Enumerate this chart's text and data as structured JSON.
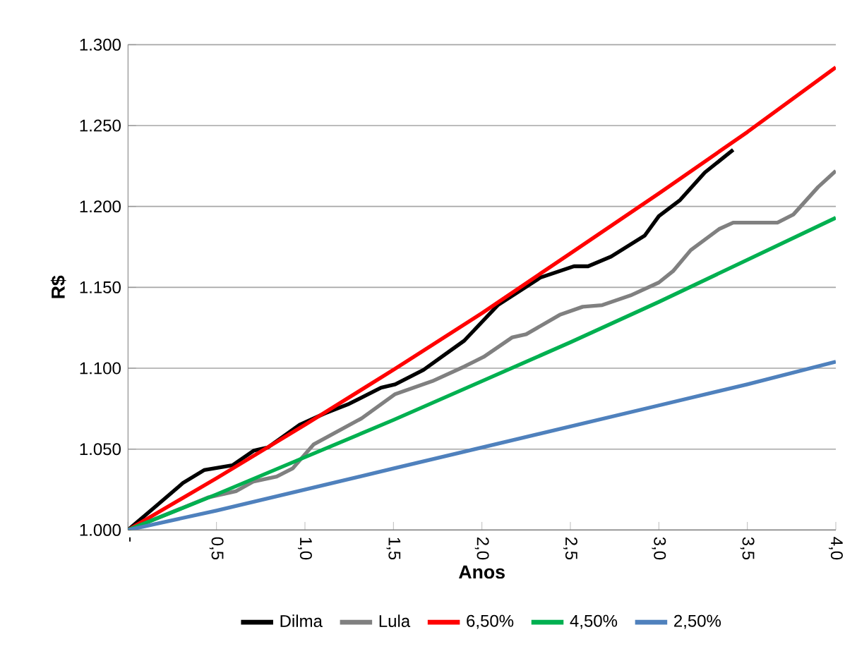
{
  "chart_data": {
    "type": "line",
    "xlabel": "Anos",
    "ylabel": "R$",
    "series": [
      {
        "name": "Dilma",
        "color": "#000000",
        "x": [
          0,
          0.15,
          0.31,
          0.43,
          0.59,
          0.71,
          0.79,
          0.97,
          1.11,
          1.25,
          1.43,
          1.51,
          1.67,
          1.9,
          2.09,
          2.33,
          2.52,
          2.6,
          2.73,
          2.92,
          3.0,
          3.12,
          3.26,
          3.42
        ],
        "values": [
          1000,
          1014,
          1029,
          1037,
          1040,
          1049,
          1051,
          1065,
          1072,
          1078,
          1088,
          1090,
          1099,
          1117,
          1139,
          1156,
          1163,
          1163,
          1169,
          1182,
          1194,
          1204,
          1221,
          1235
        ]
      },
      {
        "name": "Lula",
        "color": "#808080",
        "x": [
          0,
          0.45,
          0.61,
          0.71,
          0.84,
          0.93,
          1.05,
          1.32,
          1.51,
          1.72,
          1.9,
          2.01,
          2.17,
          2.25,
          2.44,
          2.57,
          2.68,
          2.84,
          3.0,
          3.08,
          3.18,
          3.34,
          3.42,
          3.67,
          3.76,
          3.9,
          4.0
        ],
        "values": [
          1000,
          1020,
          1024,
          1030,
          1033,
          1038,
          1053,
          1069,
          1084,
          1092,
          1101,
          1107,
          1119,
          1121,
          1133,
          1138,
          1139,
          1145,
          1153,
          1160,
          1173,
          1186,
          1190,
          1190,
          1195,
          1212,
          1222
        ]
      },
      {
        "name": "6,50%",
        "color": "#ff0000",
        "x": [
          0,
          0.5,
          1,
          1.5,
          2,
          2.5,
          3,
          3.5,
          4
        ],
        "values": [
          1000,
          1032,
          1065,
          1099,
          1134,
          1171,
          1208,
          1246,
          1286
        ]
      },
      {
        "name": "4,50%",
        "color": "#00b050",
        "x": [
          0,
          0.5,
          1,
          1.5,
          2,
          2.5,
          3,
          3.5,
          4
        ],
        "values": [
          1000,
          1022,
          1045,
          1068,
          1092,
          1116,
          1141,
          1167,
          1193
        ]
      },
      {
        "name": "2,50%",
        "color": "#4f81bd",
        "x": [
          0,
          0.5,
          1,
          1.5,
          2,
          2.5,
          3,
          3.5,
          4
        ],
        "values": [
          1000,
          1012,
          1025,
          1038,
          1051,
          1064,
          1077,
          1090,
          1104
        ]
      }
    ],
    "xlim": [
      0,
      4
    ],
    "xticks": [
      {
        "value": 0,
        "label": "-"
      },
      {
        "value": 0.5,
        "label": "0,5"
      },
      {
        "value": 1,
        "label": "1,0"
      },
      {
        "value": 1.5,
        "label": "1,5"
      },
      {
        "value": 2,
        "label": "2,0"
      },
      {
        "value": 2.5,
        "label": "2,5"
      },
      {
        "value": 3,
        "label": "3,0"
      },
      {
        "value": 3.5,
        "label": "3,5"
      },
      {
        "value": 4,
        "label": "4,0"
      }
    ],
    "ylim": [
      1000,
      1300
    ],
    "yticks": [
      {
        "value": 1000,
        "label": "1.000"
      },
      {
        "value": 1050,
        "label": "1.050"
      },
      {
        "value": 1100,
        "label": "1.100"
      },
      {
        "value": 1150,
        "label": "1.150"
      },
      {
        "value": 1200,
        "label": "1.200"
      },
      {
        "value": 1250,
        "label": "1.250"
      },
      {
        "value": 1300,
        "label": "1.300"
      }
    ],
    "grid": "y",
    "legend": "bottom"
  }
}
